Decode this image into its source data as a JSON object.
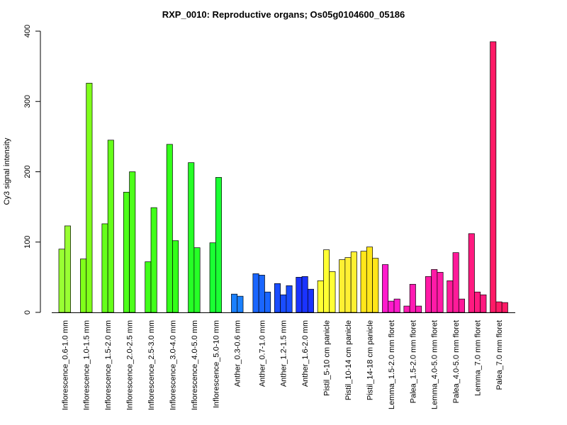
{
  "chart_data": {
    "type": "bar",
    "title": "RXP_0010: Reproductive organs; Os05g0104600_05186",
    "xlabel": "",
    "ylabel": "Cy3 signal intensity",
    "ylim": [
      0,
      400
    ],
    "yticks": [
      0,
      100,
      200,
      300,
      400
    ],
    "grid": false,
    "legend": "none",
    "groups": [
      {
        "label": "Inflorescence_0.6-1.0 mm",
        "color": "#99ff33",
        "values": [
          90,
          123
        ]
      },
      {
        "label": "Inflorescence_1.0-1.5 mm",
        "color": "#80ff1a",
        "values": [
          76,
          326
        ]
      },
      {
        "label": "Inflorescence_1.5-2.0 mm",
        "color": "#66ff1a",
        "values": [
          126,
          245
        ]
      },
      {
        "label": "Inflorescence_2.0-2.5 mm",
        "color": "#4dff1a",
        "values": [
          171,
          200
        ]
      },
      {
        "label": "Inflorescence_2.5-3.0 mm",
        "color": "#40ff1a",
        "values": [
          72,
          149
        ]
      },
      {
        "label": "Inflorescence_3.0-4.0 mm",
        "color": "#33ff1a",
        "values": [
          239,
          102
        ]
      },
      {
        "label": "Inflorescence_4.0-5.0 mm",
        "color": "#26ff26",
        "values": [
          213,
          92
        ]
      },
      {
        "label": "Inflorescence_5.0-10 mm",
        "color": "#1aff33",
        "values": [
          99,
          192
        ]
      },
      {
        "label": "Anther_0.3-0.6 mm",
        "color": "#1a80ff",
        "values": [
          26,
          23
        ]
      },
      {
        "label": "Anther_0.7-1.0 mm",
        "color": "#1a66ff",
        "values": [
          55,
          53,
          29
        ]
      },
      {
        "label": "Anther_1.2-1.5 mm",
        "color": "#1a4dff",
        "values": [
          41,
          25,
          38
        ]
      },
      {
        "label": "Anther_1.6-2.0 mm",
        "color": "#1a33ff",
        "values": [
          50,
          51,
          33
        ]
      },
      {
        "label": "Pistil_5-10 cm panicle",
        "color": "#ffff33",
        "values": [
          45,
          89,
          58
        ]
      },
      {
        "label": "Pistil_10-14 cm panicle",
        "color": "#fff033",
        "values": [
          75,
          78,
          86
        ]
      },
      {
        "label": "Pistil_14-18 cm panicle",
        "color": "#ffe61a",
        "values": [
          87,
          93,
          77
        ]
      },
      {
        "label": "Lemma_1.5-2.0 mm floret",
        "color": "#ff1acc",
        "values": [
          68,
          16,
          19
        ]
      },
      {
        "label": "Palea_1.5-2.0 mm floret",
        "color": "#ff1ab3",
        "values": [
          9,
          40,
          9
        ]
      },
      {
        "label": "Lemma_4.0-5.0 mm floret",
        "color": "#ff1aa6",
        "values": [
          51,
          61,
          57
        ]
      },
      {
        "label": "Palea_4.0-5.0 mm floret",
        "color": "#ff1a99",
        "values": [
          45,
          85,
          19
        ]
      },
      {
        "label": "Lemma_7.0 mm floret",
        "color": "#ff1a80",
        "values": [
          112,
          29,
          25
        ]
      },
      {
        "label": "Palea_7.0 mm floret",
        "color": "#ff1a66",
        "values": [
          385,
          15,
          14
        ]
      }
    ]
  }
}
